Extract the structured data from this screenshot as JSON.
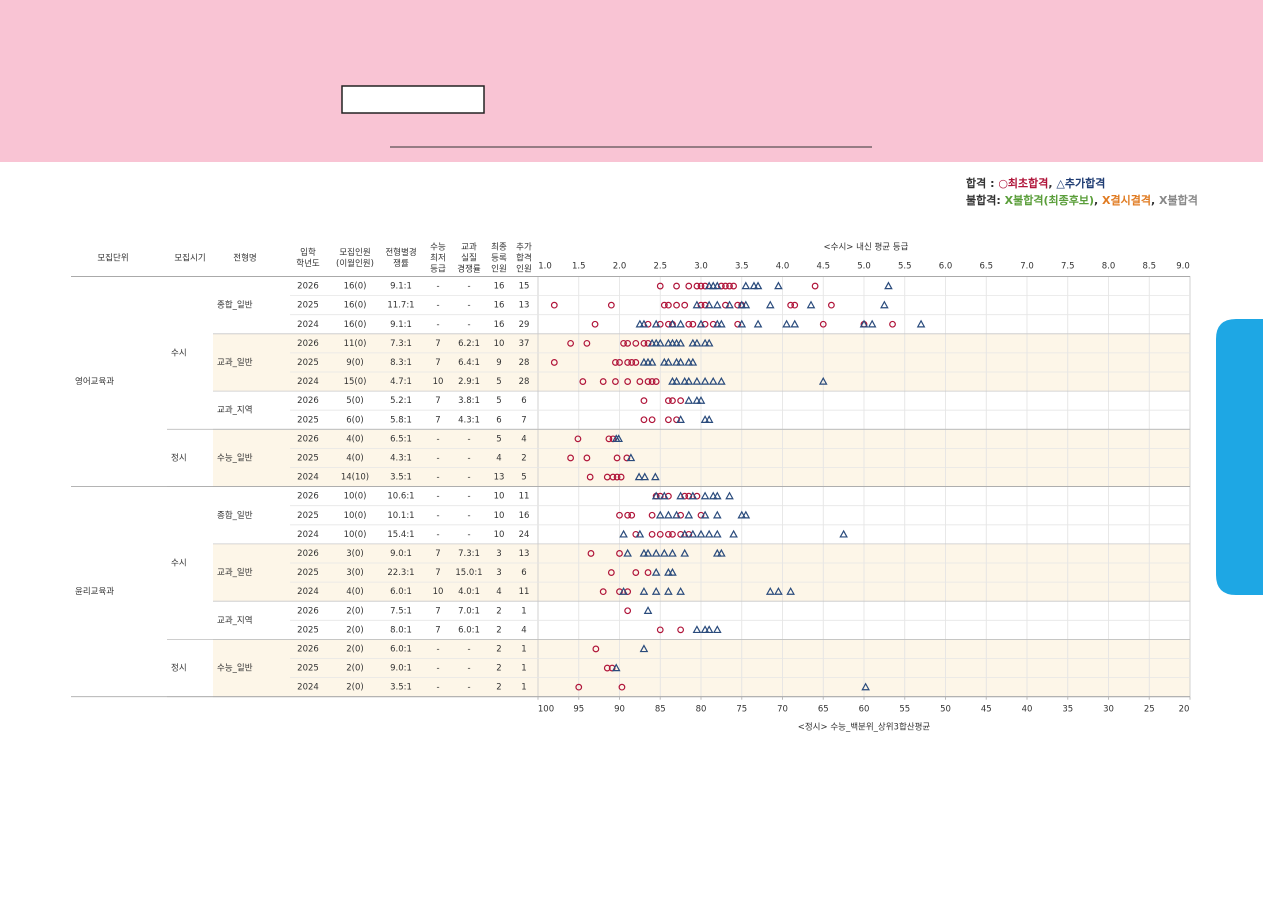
{
  "chart_data": {
    "type": "dot-table",
    "legend": {
      "pass": "합격",
      "pass_sep": " : ",
      "pass_items": [
        "○최초합격",
        "△추가합격"
      ],
      "fail": "불합격:",
      "fail_items": [
        "X불합격(최종후보)",
        "X결시결격",
        "X불합격"
      ],
      "separator": ", "
    },
    "columns": [
      [
        "모집단위"
      ],
      [
        "모집시기"
      ],
      [
        "전형명"
      ],
      [
        "입학",
        "학년도"
      ],
      [
        "모집인원",
        "(이월인원)"
      ],
      [
        "전형별경",
        "쟁률"
      ],
      [
        "수능",
        "최저",
        "등급"
      ],
      [
        "교과",
        "실질",
        "경쟁률"
      ],
      [
        "최종",
        "등록",
        "인원"
      ],
      [
        "추가",
        "합격",
        "인원"
      ]
    ],
    "xlabel": "<수시> 내신 평균 등급",
    "xlim": [
      1,
      9
    ],
    "xticks": [
      {
        "value": 1,
        "label": "1.0"
      },
      {
        "value": 1.5,
        "label": "1.5"
      },
      {
        "value": 2,
        "label": "2.0"
      },
      {
        "value": 2.5,
        "label": "2.5"
      },
      {
        "value": 3,
        "label": "3.0"
      },
      {
        "value": 3.5,
        "label": "3.5"
      },
      {
        "value": 4,
        "label": "4.0"
      },
      {
        "value": 4.5,
        "label": "4.5"
      },
      {
        "value": 5,
        "label": "5.0"
      },
      {
        "value": 5.5,
        "label": "5.5"
      },
      {
        "value": 6,
        "label": "6.0"
      },
      {
        "value": 6.5,
        "label": "6.5"
      },
      {
        "value": 7,
        "label": "7.0"
      },
      {
        "value": 7.5,
        "label": "7.5"
      },
      {
        "value": 8,
        "label": "8.0"
      },
      {
        "value": 8.5,
        "label": "8.5"
      },
      {
        "value": 9,
        "label": "9.0"
      }
    ],
    "x2label": "<정시> 수능_백분위_상위3합산평균",
    "x2lim": [
      100,
      20
    ],
    "x2ticks": [
      100,
      95,
      90,
      85,
      80,
      75,
      70,
      65,
      60,
      55,
      50,
      45,
      40,
      35,
      30,
      25,
      20
    ],
    "grid": true,
    "colors": {
      "first": "#b0153a",
      "added": "#2a4b7c"
    },
    "units": [
      {
        "name": "영어교육과",
        "periods": [
          {
            "name": "수시",
            "tracks": [
              {
                "name": "종합_일반",
                "rows": [
                  {
                    "year": "2026",
                    "quota": "16(0)",
                    "ratio": "9.1:1",
                    "min_grade": "-",
                    "real_ratio": "-",
                    "enrolled": 16,
                    "additional": 15,
                    "first": [
                      2.5,
                      2.7,
                      2.85,
                      2.95,
                      3.0,
                      3.05,
                      3.25,
                      3.3,
                      3.35,
                      3.4,
                      4.4
                    ],
                    "added": [
                      3.1,
                      3.15,
                      3.2,
                      3.55,
                      3.65,
                      3.7,
                      3.95,
                      5.3
                    ]
                  },
                  {
                    "year": "2025",
                    "quota": "16(0)",
                    "ratio": "11.7:1",
                    "min_grade": "-",
                    "real_ratio": "-",
                    "enrolled": 16,
                    "additional": 13,
                    "first": [
                      1.2,
                      1.9,
                      2.55,
                      2.6,
                      2.7,
                      2.8,
                      3.0,
                      3.05,
                      3.3,
                      3.45,
                      3.5,
                      4.1,
                      4.15,
                      4.6
                    ],
                    "added": [
                      2.95,
                      3.1,
                      3.2,
                      3.35,
                      3.5,
                      3.55,
                      3.85,
                      4.35,
                      5.25
                    ]
                  },
                  {
                    "year": "2024",
                    "quota": "16(0)",
                    "ratio": "9.1:1",
                    "min_grade": "-",
                    "real_ratio": "-",
                    "enrolled": 16,
                    "additional": 29,
                    "first": [
                      1.7,
                      2.35,
                      2.5,
                      2.6,
                      2.65,
                      2.85,
                      2.9,
                      3.05,
                      3.15,
                      3.45,
                      4.5,
                      5.0,
                      5.35
                    ],
                    "added": [
                      2.25,
                      2.3,
                      2.45,
                      2.65,
                      2.75,
                      3.0,
                      3.2,
                      3.25,
                      3.5,
                      3.7,
                      4.05,
                      4.15,
                      5.0,
                      5.1,
                      5.7
                    ]
                  }
                ]
              },
              {
                "name": "교과_일반",
                "shaded": true,
                "rows": [
                  {
                    "year": "2026",
                    "quota": "11(0)",
                    "ratio": "7.3:1",
                    "min_grade": "7",
                    "real_ratio": "6.2:1",
                    "enrolled": 10,
                    "additional": 37,
                    "first": [
                      1.4,
                      1.6,
                      2.05,
                      2.1,
                      2.2,
                      2.3,
                      2.35
                    ],
                    "added": [
                      2.4,
                      2.45,
                      2.5,
                      2.6,
                      2.65,
                      2.7,
                      2.75,
                      2.9,
                      2.95,
                      3.05,
                      3.1
                    ]
                  },
                  {
                    "year": "2025",
                    "quota": "9(0)",
                    "ratio": "8.3:1",
                    "min_grade": "7",
                    "real_ratio": "6.4:1",
                    "enrolled": 9,
                    "additional": 28,
                    "first": [
                      1.2,
                      1.95,
                      2.0,
                      2.1,
                      2.15,
                      2.2
                    ],
                    "added": [
                      2.3,
                      2.35,
                      2.4,
                      2.55,
                      2.6,
                      2.7,
                      2.75,
                      2.85,
                      2.9
                    ]
                  },
                  {
                    "year": "2024",
                    "quota": "15(0)",
                    "ratio": "4.7:1",
                    "min_grade": "10",
                    "real_ratio": "2.9:1",
                    "enrolled": 5,
                    "additional": 28,
                    "first": [
                      1.55,
                      1.8,
                      1.95,
                      2.1,
                      2.25,
                      2.35,
                      2.4,
                      2.45
                    ],
                    "added": [
                      2.65,
                      2.7,
                      2.8,
                      2.85,
                      2.95,
                      3.05,
                      3.15,
                      3.25,
                      4.5
                    ]
                  }
                ]
              },
              {
                "name": "교과_지역",
                "rows": [
                  {
                    "year": "2026",
                    "quota": "5(0)",
                    "ratio": "5.2:1",
                    "min_grade": "7",
                    "real_ratio": "3.8:1",
                    "enrolled": 5,
                    "additional": 6,
                    "first": [
                      2.3,
                      2.6,
                      2.65,
                      2.75
                    ],
                    "added": [
                      2.85,
                      2.95,
                      3.0
                    ]
                  },
                  {
                    "year": "2025",
                    "quota": "6(0)",
                    "ratio": "5.8:1",
                    "min_grade": "7",
                    "real_ratio": "4.3:1",
                    "enrolled": 6,
                    "additional": 7,
                    "first": [
                      2.3,
                      2.4,
                      2.6,
                      2.7
                    ],
                    "added": [
                      2.75,
                      3.05,
                      3.1
                    ]
                  }
                ]
              }
            ]
          },
          {
            "name": "정시",
            "tracks": [
              {
                "name": "수능_일반",
                "shaded": true,
                "axis": "x2",
                "rows": [
                  {
                    "year": "2026",
                    "quota": "4(0)",
                    "ratio": "6.5:1",
                    "min_grade": "-",
                    "real_ratio": "-",
                    "enrolled": 5,
                    "additional": 4,
                    "first": [
                      95.1,
                      91.3,
                      90.8
                    ],
                    "added": [
                      90.4,
                      90.1
                    ]
                  },
                  {
                    "year": "2025",
                    "quota": "4(0)",
                    "ratio": "4.3:1",
                    "min_grade": "-",
                    "real_ratio": "-",
                    "enrolled": 4,
                    "additional": 2,
                    "first": [
                      96,
                      94,
                      90.3,
                      89.1
                    ],
                    "added": [
                      88.6
                    ]
                  },
                  {
                    "year": "2024",
                    "quota": "14(10)",
                    "ratio": "3.5:1",
                    "min_grade": "-",
                    "real_ratio": "-",
                    "enrolled": 13,
                    "additional": 5,
                    "first": [
                      93.6,
                      91.5,
                      90.8,
                      90.3,
                      89.8
                    ],
                    "added": [
                      87.6,
                      86.9,
                      85.6
                    ]
                  }
                ]
              }
            ]
          }
        ]
      },
      {
        "name": "윤리교육과",
        "periods": [
          {
            "name": "수시",
            "tracks": [
              {
                "name": "종합_일반",
                "rows": [
                  {
                    "year": "2026",
                    "quota": "10(0)",
                    "ratio": "10.6:1",
                    "min_grade": "-",
                    "real_ratio": "-",
                    "enrolled": 10,
                    "additional": 11,
                    "first": [
                      2.45,
                      2.5,
                      2.6,
                      2.8,
                      2.85,
                      2.95
                    ],
                    "added": [
                      2.45,
                      2.55,
                      2.75,
                      2.9,
                      3.05,
                      3.15,
                      3.2,
                      3.35
                    ]
                  },
                  {
                    "year": "2025",
                    "quota": "10(0)",
                    "ratio": "10.1:1",
                    "min_grade": "-",
                    "real_ratio": "-",
                    "enrolled": 10,
                    "additional": 16,
                    "first": [
                      2.0,
                      2.1,
                      2.15,
                      2.4,
                      2.75,
                      3.0
                    ],
                    "added": [
                      2.5,
                      2.6,
                      2.7,
                      2.85,
                      3.05,
                      3.2,
                      3.5,
                      3.55
                    ]
                  },
                  {
                    "year": "2024",
                    "quota": "10(0)",
                    "ratio": "15.4:1",
                    "min_grade": "-",
                    "real_ratio": "-",
                    "enrolled": 10,
                    "additional": 24,
                    "first": [
                      2.2,
                      2.4,
                      2.5,
                      2.6,
                      2.65,
                      2.75,
                      2.85
                    ],
                    "added": [
                      2.05,
                      2.25,
                      2.8,
                      2.9,
                      3.0,
                      3.1,
                      3.2,
                      3.4,
                      4.75
                    ]
                  }
                ]
              },
              {
                "name": "교과_일반",
                "shaded": true,
                "rows": [
                  {
                    "year": "2026",
                    "quota": "3(0)",
                    "ratio": "9.0:1",
                    "min_grade": "7",
                    "real_ratio": "7.3:1",
                    "enrolled": 3,
                    "additional": 13,
                    "first": [
                      1.65,
                      2.0
                    ],
                    "added": [
                      2.1,
                      2.3,
                      2.35,
                      2.45,
                      2.55,
                      2.65,
                      2.8,
                      3.2,
                      3.25
                    ]
                  },
                  {
                    "year": "2025",
                    "quota": "3(0)",
                    "ratio": "22.3:1",
                    "min_grade": "7",
                    "real_ratio": "15.0:1",
                    "enrolled": 3,
                    "additional": 6,
                    "first": [
                      1.9,
                      2.2,
                      2.35
                    ],
                    "added": [
                      2.45,
                      2.6,
                      2.65
                    ]
                  },
                  {
                    "year": "2024",
                    "quota": "4(0)",
                    "ratio": "6.0:1",
                    "min_grade": "10",
                    "real_ratio": "4.0:1",
                    "enrolled": 4,
                    "additional": 11,
                    "first": [
                      1.8,
                      2.0,
                      2.1
                    ],
                    "added": [
                      2.05,
                      2.3,
                      2.45,
                      2.6,
                      2.75,
                      3.85,
                      3.95,
                      4.1
                    ]
                  }
                ]
              },
              {
                "name": "교과_지역",
                "rows": [
                  {
                    "year": "2026",
                    "quota": "2(0)",
                    "ratio": "7.5:1",
                    "min_grade": "7",
                    "real_ratio": "7.0:1",
                    "enrolled": 2,
                    "additional": 1,
                    "first": [
                      2.1
                    ],
                    "added": [
                      2.35
                    ]
                  },
                  {
                    "year": "2025",
                    "quota": "2(0)",
                    "ratio": "8.0:1",
                    "min_grade": "7",
                    "real_ratio": "6.0:1",
                    "enrolled": 2,
                    "additional": 4,
                    "first": [
                      2.5,
                      2.75
                    ],
                    "added": [
                      2.95,
                      3.05,
                      3.1,
                      3.2
                    ]
                  }
                ]
              }
            ]
          },
          {
            "name": "정시",
            "tracks": [
              {
                "name": "수능_일반",
                "shaded": true,
                "axis": "x2",
                "rows": [
                  {
                    "year": "2026",
                    "quota": "2(0)",
                    "ratio": "6.0:1",
                    "min_grade": "-",
                    "real_ratio": "-",
                    "enrolled": 2,
                    "additional": 1,
                    "first": [
                      92.9
                    ],
                    "added": [
                      87
                    ]
                  },
                  {
                    "year": "2025",
                    "quota": "2(0)",
                    "ratio": "9.0:1",
                    "min_grade": "-",
                    "real_ratio": "-",
                    "enrolled": 2,
                    "additional": 1,
                    "first": [
                      91.5,
                      90.9
                    ],
                    "added": [
                      90.4
                    ]
                  },
                  {
                    "year": "2024",
                    "quota": "2(0)",
                    "ratio": "3.5:1",
                    "min_grade": "-",
                    "real_ratio": "-",
                    "enrolled": 2,
                    "additional": 1,
                    "first": [
                      95,
                      89.7
                    ],
                    "added": [
                      59.8
                    ]
                  }
                ]
              }
            ]
          }
        ]
      }
    ]
  }
}
